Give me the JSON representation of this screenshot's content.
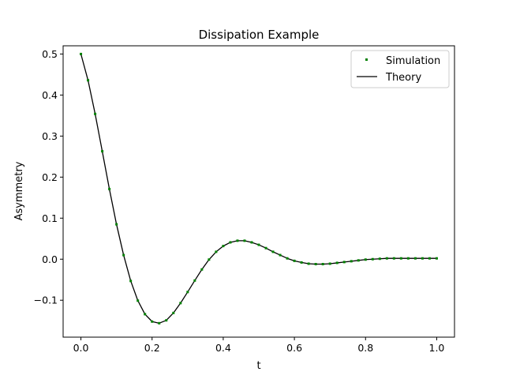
{
  "chart_data": {
    "type": "scatter",
    "title": "Dissipation Example",
    "xlabel": "t",
    "ylabel": "Asymmetry",
    "xlim": [
      -0.05,
      1.05
    ],
    "ylim": [
      -0.19,
      0.52
    ],
    "xticks": [
      0.0,
      0.2,
      0.4,
      0.6,
      0.8,
      1.0
    ],
    "xtick_labels": [
      "0.0",
      "0.2",
      "0.4",
      "0.6",
      "0.8",
      "1.0"
    ],
    "yticks": [
      -0.1,
      0.0,
      0.1,
      0.2,
      0.3,
      0.4,
      0.5
    ],
    "ytick_labels": [
      "−0.1",
      "0.0",
      "0.1",
      "0.2",
      "0.3",
      "0.4",
      "0.5"
    ],
    "grid": false,
    "legend_position": "top-right",
    "series": [
      {
        "name": "Simulation",
        "kind": "scatter",
        "color": "#008000",
        "x": [
          0.0,
          0.02,
          0.04,
          0.06,
          0.08,
          0.1,
          0.12,
          0.14,
          0.16,
          0.18,
          0.2,
          0.22,
          0.24,
          0.26,
          0.28,
          0.3,
          0.32,
          0.34,
          0.36,
          0.38,
          0.4,
          0.42,
          0.44,
          0.46,
          0.48,
          0.5,
          0.52,
          0.54,
          0.56,
          0.58,
          0.6,
          0.62,
          0.64,
          0.66,
          0.68,
          0.7,
          0.72,
          0.74,
          0.76,
          0.78,
          0.8,
          0.82,
          0.84,
          0.86,
          0.88,
          0.9,
          0.92,
          0.94,
          0.96,
          0.98,
          1.0
        ],
        "y": [
          0.5,
          0.436,
          0.354,
          0.263,
          0.171,
          0.085,
          0.01,
          -0.053,
          -0.101,
          -0.134,
          -0.152,
          -0.156,
          -0.149,
          -0.131,
          -0.107,
          -0.08,
          -0.052,
          -0.025,
          -0.001,
          0.018,
          0.032,
          0.041,
          0.045,
          0.045,
          0.041,
          0.035,
          0.027,
          0.018,
          0.01,
          0.002,
          -0.004,
          -0.008,
          -0.011,
          -0.012,
          -0.012,
          -0.011,
          -0.009,
          -0.007,
          -0.005,
          -0.003,
          -0.001,
          0.0,
          0.001,
          0.002,
          0.002,
          0.002,
          0.002,
          0.002,
          0.002,
          0.002,
          0.002
        ]
      },
      {
        "name": "Theory",
        "kind": "line",
        "color": "#000000",
        "x": [
          0.0,
          0.02,
          0.04,
          0.06,
          0.08,
          0.1,
          0.12,
          0.14,
          0.16,
          0.18,
          0.2,
          0.22,
          0.24,
          0.26,
          0.28,
          0.3,
          0.32,
          0.34,
          0.36,
          0.38,
          0.4,
          0.42,
          0.44,
          0.46,
          0.48,
          0.5,
          0.52,
          0.54,
          0.56,
          0.58,
          0.6,
          0.62,
          0.64,
          0.66,
          0.68,
          0.7,
          0.72,
          0.74,
          0.76,
          0.78,
          0.8,
          0.82,
          0.84,
          0.86,
          0.88,
          0.9,
          0.92,
          0.94,
          0.96,
          0.98,
          1.0
        ],
        "y": [
          0.5,
          0.436,
          0.354,
          0.263,
          0.171,
          0.085,
          0.01,
          -0.053,
          -0.101,
          -0.134,
          -0.152,
          -0.156,
          -0.149,
          -0.131,
          -0.107,
          -0.08,
          -0.052,
          -0.025,
          -0.001,
          0.018,
          0.032,
          0.041,
          0.045,
          0.045,
          0.041,
          0.035,
          0.027,
          0.018,
          0.01,
          0.002,
          -0.004,
          -0.008,
          -0.011,
          -0.012,
          -0.012,
          -0.011,
          -0.009,
          -0.007,
          -0.005,
          -0.003,
          -0.001,
          0.0,
          0.001,
          0.002,
          0.002,
          0.002,
          0.002,
          0.002,
          0.002,
          0.002,
          0.002
        ]
      }
    ]
  }
}
